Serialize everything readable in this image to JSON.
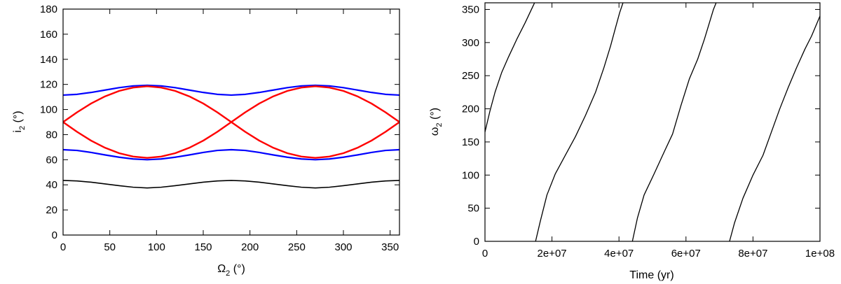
{
  "chart_data": [
    {
      "type": "line",
      "xlabel": "Ω",
      "xlabel_sub": "2",
      "xlabel_unit": " (°)",
      "ylabel": "i",
      "ylabel_sub": "2",
      "ylabel_unit": " (°)",
      "xlim": [
        0,
        360
      ],
      "ylim": [
        0,
        180
      ],
      "xticks": [
        0,
        50,
        100,
        150,
        200,
        250,
        300,
        350
      ],
      "yticks": [
        0,
        20,
        40,
        60,
        80,
        100,
        120,
        140,
        160,
        180
      ],
      "grid": false,
      "series": [
        {
          "color": "#0000ff",
          "width": 2.2,
          "x": [
            0,
            15,
            30,
            45,
            60,
            75,
            90,
            105,
            120,
            135,
            150,
            165,
            180,
            195,
            210,
            225,
            240,
            255,
            270,
            285,
            300,
            315,
            330,
            345,
            360
          ],
          "y": [
            111.5,
            112.1,
            113.6,
            115.5,
            117.4,
            118.8,
            119.3,
            118.8,
            117.4,
            115.5,
            113.6,
            112.1,
            111.5,
            112.1,
            113.6,
            115.5,
            117.4,
            118.8,
            119.3,
            118.8,
            117.4,
            115.5,
            113.6,
            112.1,
            111.5
          ]
        },
        {
          "color": "#0000ff",
          "width": 2.2,
          "x": [
            0,
            15,
            30,
            45,
            60,
            75,
            90,
            105,
            120,
            135,
            150,
            165,
            180,
            195,
            210,
            225,
            240,
            255,
            270,
            285,
            300,
            315,
            330,
            345,
            360
          ],
          "y": [
            68,
            67.4,
            65.8,
            63.8,
            62,
            60.6,
            60,
            60.6,
            62,
            63.8,
            65.8,
            67.4,
            68,
            67.4,
            65.8,
            63.8,
            62,
            60.6,
            60,
            60.6,
            62,
            63.8,
            65.8,
            67.4,
            68
          ]
        },
        {
          "color": "#ff0000",
          "width": 2.4,
          "x": [
            0,
            15,
            30,
            45,
            60,
            75,
            90,
            105,
            120,
            135,
            150,
            165,
            180,
            195,
            210,
            225,
            240,
            255,
            270,
            285,
            300,
            315,
            330,
            345,
            360
          ],
          "y": [
            90,
            97.8,
            104.8,
            110.5,
            114.8,
            117.5,
            118.5,
            117.5,
            114.8,
            110.5,
            104.8,
            97.8,
            90,
            82.2,
            75.2,
            69.5,
            65.2,
            62.5,
            61.5,
            62.5,
            65.2,
            69.5,
            75.2,
            82.2,
            90
          ]
        },
        {
          "color": "#ff0000",
          "width": 2.4,
          "x": [
            0,
            15,
            30,
            45,
            60,
            75,
            90,
            105,
            120,
            135,
            150,
            165,
            180,
            195,
            210,
            225,
            240,
            255,
            270,
            285,
            300,
            315,
            330,
            345,
            360
          ],
          "y": [
            90,
            82.2,
            75.2,
            69.5,
            65.2,
            62.5,
            61.5,
            62.5,
            65.2,
            69.5,
            75.2,
            82.2,
            90,
            97.8,
            104.8,
            110.5,
            114.8,
            117.5,
            118.5,
            117.5,
            114.8,
            110.5,
            104.8,
            97.8,
            90
          ]
        },
        {
          "color": "#000000",
          "width": 1.6,
          "x": [
            0,
            15,
            30,
            45,
            60,
            75,
            90,
            105,
            120,
            135,
            150,
            165,
            180,
            195,
            210,
            225,
            240,
            255,
            270,
            285,
            300,
            315,
            330,
            345,
            360
          ],
          "y": [
            43.5,
            43.1,
            42.1,
            40.7,
            39.3,
            38.1,
            37.5,
            38.1,
            39.3,
            40.7,
            42.1,
            43.1,
            43.5,
            43.1,
            42.1,
            40.7,
            39.3,
            38.1,
            37.5,
            38.1,
            39.3,
            40.7,
            42.1,
            43.1,
            43.5
          ]
        }
      ]
    },
    {
      "type": "line",
      "xlabel": "Time (yr)",
      "ylabel": "ω",
      "ylabel_sub": "2",
      "ylabel_unit": " (°)",
      "xlim": [
        0,
        100000000
      ],
      "ylim": [
        0,
        360
      ],
      "xticks": [
        0,
        20000000,
        40000000,
        60000000,
        80000000,
        100000000
      ],
      "xtick_labels": [
        "0",
        "2e+07",
        "4e+07",
        "6e+07",
        "8e+07",
        "1e+08"
      ],
      "yticks": [
        0,
        50,
        100,
        150,
        200,
        250,
        300,
        350
      ],
      "grid": false,
      "series": [
        {
          "color": "#000000",
          "width": 1.3,
          "x": [
            0,
            1500000,
            3000000,
            5000000,
            7000000,
            9500000,
            12000000,
            14800000
          ],
          "y": [
            165,
            197,
            225,
            255,
            278,
            305,
            330,
            360
          ]
        },
        {
          "color": "#000000",
          "width": 1.3,
          "x": [
            15100000,
            16500000,
            18500000,
            21000000,
            24000000,
            27000000,
            30000000,
            33000000,
            35500000,
            37500000,
            39000000,
            40200000,
            41200000
          ],
          "y": [
            0,
            30,
            70,
            102,
            130,
            158,
            190,
            225,
            262,
            295,
            323,
            345,
            360
          ]
        },
        {
          "color": "#000000",
          "width": 1.3,
          "x": [
            44000000,
            45500000,
            47500000,
            50500000,
            53500000,
            56000000,
            58500000,
            61000000,
            63500000,
            65500000,
            67000000,
            68200000,
            69000000
          ],
          "y": [
            0,
            35,
            70,
            102,
            135,
            162,
            205,
            245,
            275,
            305,
            330,
            350,
            360
          ]
        },
        {
          "color": "#000000",
          "width": 1.3,
          "x": [
            73000000,
            74500000,
            77000000,
            80000000,
            83000000,
            85500000,
            88000000,
            90500000,
            93000000,
            95500000,
            97500000,
            100000000
          ],
          "y": [
            0,
            28,
            65,
            100,
            130,
            165,
            200,
            232,
            262,
            290,
            310,
            340
          ]
        }
      ]
    }
  ]
}
